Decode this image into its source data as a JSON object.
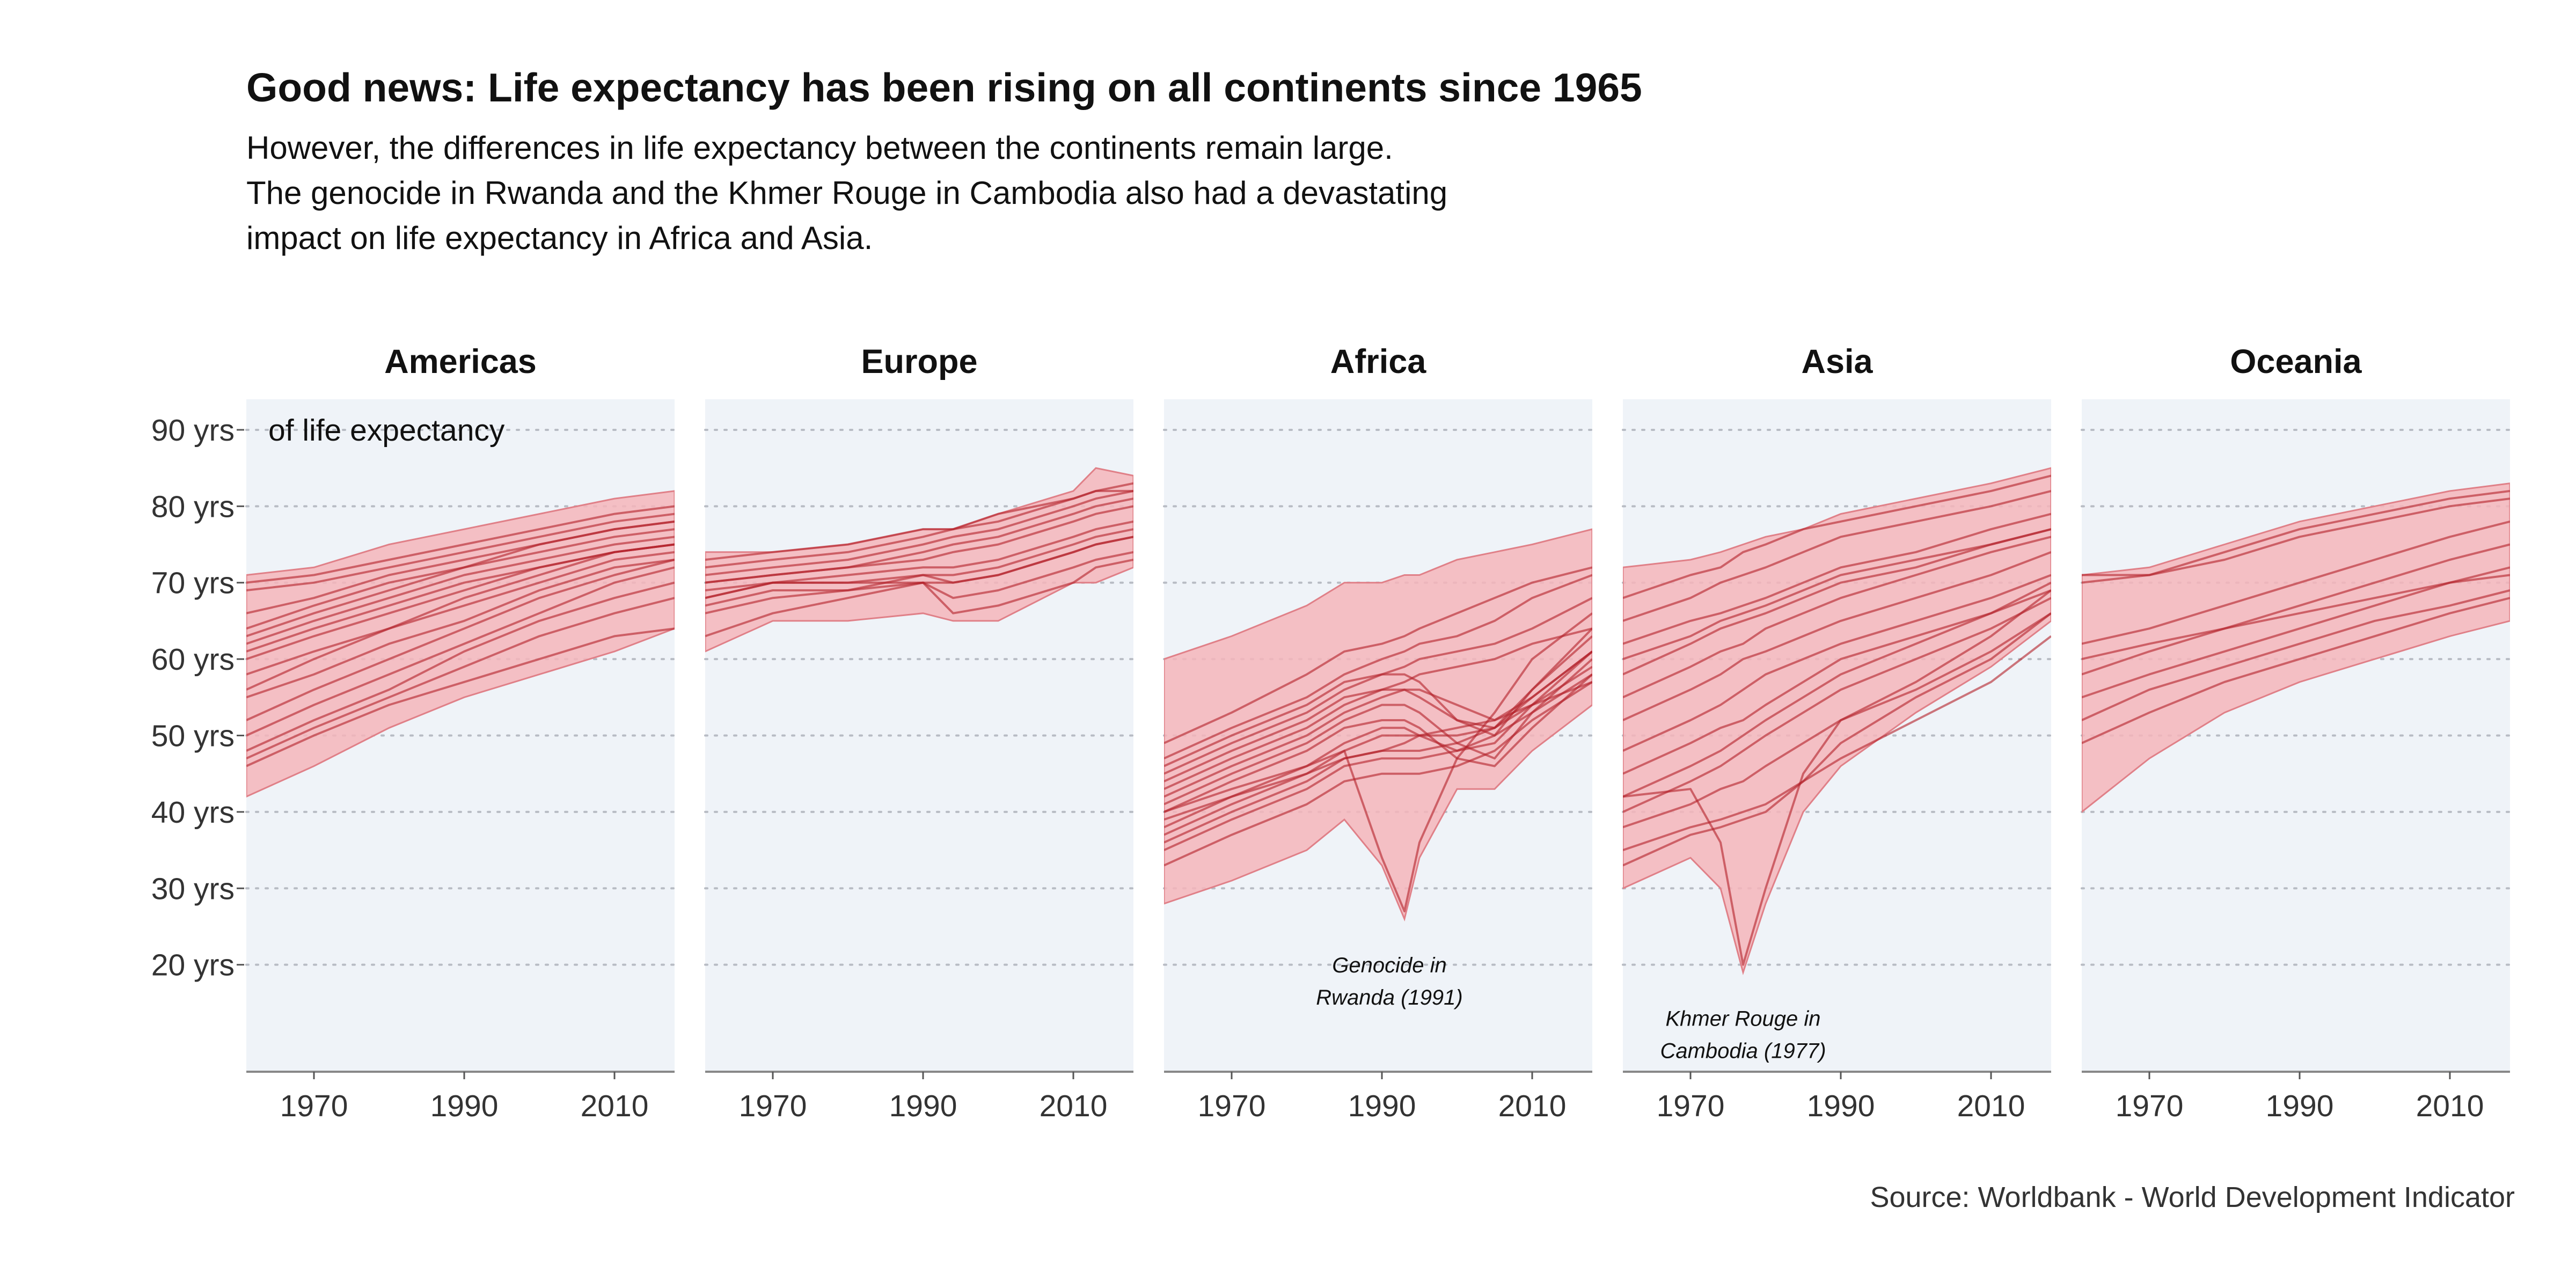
{
  "title": "Good news: Life expectancy has been rising on all continents since 1965",
  "subtitle_lines": [
    "However, the differences in life expectancy between the continents remain large.",
    "The genocide in Rwanda and the Khmer Rouge in Cambodia also had a devastating",
    "impact on life expectancy in Africa and Asia."
  ],
  "caption": "Source: Worldbank - World Development Indicator",
  "colors": {
    "panel_bg": "#eff3f8",
    "ribbon_fill": "#f5b5bb",
    "ribbon_edge": "#e08088",
    "line": "#b22028",
    "grid": "#b8bcc4"
  },
  "chart_data": {
    "type": "line",
    "facets": [
      "Americas",
      "Europe",
      "Africa",
      "Asia",
      "Oceania"
    ],
    "x_range": [
      1961,
      2018
    ],
    "x_ticks": [
      1970,
      1990,
      2010
    ],
    "x_tick_labels": [
      "1970",
      "1990",
      "2010"
    ],
    "ylim": [
      6,
      94
    ],
    "y_ticks": [
      20,
      30,
      40,
      50,
      60,
      70,
      80,
      90
    ],
    "y_tick_labels": [
      "20 yrs",
      "30 yrs",
      "40 yrs",
      "50 yrs",
      "60 yrs",
      "70 yrs",
      "80 yrs",
      "90 yrs"
    ],
    "y_unit_label": "of life expectancy",
    "grid": "horizontal dotted",
    "panels": [
      {
        "name": "Americas",
        "band_x": [
          1961,
          1970,
          1980,
          1990,
          2000,
          2010,
          2018
        ],
        "band_min": [
          42,
          46,
          51,
          55,
          58,
          61,
          64
        ],
        "band_max": [
          71,
          72,
          75,
          77,
          79,
          81,
          82
        ],
        "series": [
          {
            "y": [
              70,
              71,
              73,
              75,
              77,
              79,
              80
            ]
          },
          {
            "y": [
              69,
              70,
              72,
              74,
              76,
              78,
              79
            ]
          },
          {
            "y": [
              66,
              68,
              71,
              73,
              75,
              77,
              78
            ]
          },
          {
            "y": [
              64,
              67,
              70,
              72,
              74,
              76,
              77
            ]
          },
          {
            "y": [
              62,
              65,
              68,
              71,
              73,
              75,
              76
            ]
          },
          {
            "y": [
              60,
              63,
              66,
              69,
              72,
              74,
              75
            ]
          },
          {
            "y": [
              58,
              61,
              64,
              67,
              70,
              73,
              74
            ]
          },
          {
            "y": [
              56,
              60,
              64,
              68,
              71,
              74,
              75
            ]
          },
          {
            "y": [
              55,
              58,
              62,
              65,
              69,
              72,
              73
            ]
          },
          {
            "y": [
              52,
              56,
              60,
              64,
              68,
              71,
              73
            ]
          },
          {
            "y": [
              50,
              54,
              58,
              62,
              66,
              70,
              72
            ]
          },
          {
            "y": [
              48,
              52,
              56,
              61,
              65,
              68,
              70
            ]
          },
          {
            "y": [
              47,
              51,
              55,
              59,
              63,
              66,
              68
            ]
          },
          {
            "y": [
              46,
              50,
              54,
              57,
              60,
              63,
              64
            ]
          },
          {
            "y": [
              63,
              66,
              69,
              72,
              75,
              77,
              78
            ]
          },
          {
            "y": [
              61,
              64,
              67,
              70,
              72,
              74,
              75
            ]
          }
        ]
      },
      {
        "name": "Europe",
        "band_x": [
          1961,
          1970,
          1980,
          1990,
          1994,
          2000,
          2010,
          2013,
          2018
        ],
        "band_min": [
          61,
          65,
          65,
          66,
          65,
          65,
          70,
          70,
          72
        ],
        "band_max": [
          74,
          74,
          75,
          77,
          77,
          79,
          82,
          85,
          84
        ],
        "series": [
          {
            "y": [
              73,
              74,
              75,
              77,
              77,
              79,
              81,
              82,
              83
            ]
          },
          {
            "y": [
              72,
              73,
              74,
              76,
              77,
              78,
              81,
              82,
              82
            ]
          },
          {
            "y": [
              71,
              72,
              73,
              75,
              76,
              77,
              80,
              81,
              82
            ]
          },
          {
            "y": [
              70,
              71,
              72,
              74,
              75,
              76,
              79,
              80,
              81
            ]
          },
          {
            "y": [
              70,
              71,
              72,
              73,
              74,
              75,
              78,
              79,
              80
            ]
          },
          {
            "y": [
              69,
              70,
              71,
              72,
              72,
              73,
              76,
              77,
              78
            ]
          },
          {
            "y": [
              68,
              70,
              70,
              71,
              70,
              71,
              74,
              75,
              76
            ]
          },
          {
            "y": [
              68,
              70,
              70,
              70,
              66,
              67,
              70,
              72,
              73
            ]
          },
          {
            "y": [
              67,
              69,
              69,
              70,
              68,
              69,
              72,
              73,
              74
            ]
          },
          {
            "y": [
              66,
              68,
              69,
              71,
              71,
              72,
              75,
              76,
              77
            ]
          },
          {
            "y": [
              63,
              66,
              68,
              70,
              70,
              71,
              74,
              75,
              76
            ]
          }
        ]
      },
      {
        "name": "Africa",
        "band_x": [
          1961,
          1970,
          1980,
          1985,
          1990,
          1993,
          1995,
          2000,
          2005,
          2010,
          2018
        ],
        "band_min": [
          28,
          31,
          35,
          39,
          33,
          26,
          34,
          43,
          43,
          48,
          54
        ],
        "band_max": [
          60,
          63,
          67,
          70,
          70,
          71,
          71,
          73,
          74,
          75,
          77
        ],
        "series": [
          {
            "y": [
              49,
              53,
              58,
              61,
              62,
              63,
              64,
              66,
              68,
              70,
              72
            ]
          },
          {
            "y": [
              47,
              51,
              55,
              58,
              60,
              61,
              62,
              63,
              65,
              68,
              71
            ]
          },
          {
            "y": [
              45,
              49,
              53,
              56,
              58,
              59,
              60,
              61,
              62,
              64,
              68
            ]
          },
          {
            "y": [
              44,
              48,
              52,
              55,
              56,
              56,
              55,
              52,
              51,
              56,
              63
            ]
          },
          {
            "y": [
              42,
              46,
              50,
              53,
              55,
              56,
              56,
              54,
              52,
              55,
              61
            ]
          },
          {
            "y": [
              41,
              45,
              49,
              52,
              54,
              54,
              53,
              49,
              47,
              53,
              60
            ]
          },
          {
            "y": [
              40,
              44,
              48,
              51,
              52,
              52,
              51,
              47,
              46,
              51,
              58
            ]
          },
          {
            "y": [
              38,
              42,
              46,
              49,
              51,
              51,
              50,
              48,
              49,
              54,
              61
            ]
          },
          {
            "y": [
              37,
              41,
              45,
              48,
              50,
              50,
              50,
              50,
              51,
              55,
              61
            ]
          },
          {
            "y": [
              36,
              40,
              44,
              47,
              48,
              48,
              48,
              49,
              51,
              54,
              59
            ]
          },
          {
            "y": [
              35,
              39,
              43,
              46,
              47,
              47,
              47,
              48,
              50,
              53,
              58
            ]
          },
          {
            "y": [
              33,
              37,
              41,
              44,
              45,
              45,
              45,
              46,
              48,
              52,
              57
            ]
          },
          {
            "y": [
              40,
              43,
              46,
              48,
              34,
              27,
              36,
              47,
              53,
              60,
              66
            ]
          },
          {
            "y": [
              46,
              50,
              54,
              57,
              58,
              58,
              57,
              52,
              50,
              56,
              64
            ]
          },
          {
            "y": [
              39,
              42,
              45,
              47,
              48,
              49,
              50,
              51,
              52,
              54,
              57
            ]
          },
          {
            "y": [
              43,
              47,
              51,
              54,
              56,
              57,
              58,
              59,
              60,
              62,
              64
            ]
          }
        ]
      },
      {
        "name": "Asia",
        "band_x": [
          1961,
          1970,
          1974,
          1977,
          1980,
          1985,
          1990,
          2000,
          2010,
          2018
        ],
        "band_min": [
          30,
          34,
          30,
          19,
          28,
          40,
          46,
          53,
          59,
          65
        ],
        "band_max": [
          72,
          73,
          74,
          75,
          76,
          77,
          79,
          81,
          83,
          85
        ],
        "series": [
          {
            "y": [
              68,
              71,
              72,
              74,
              75,
              77,
              78,
              80,
              82,
              84
            ]
          },
          {
            "y": [
              65,
              68,
              70,
              71,
              72,
              74,
              76,
              78,
              80,
              82
            ]
          },
          {
            "y": [
              62,
              65,
              66,
              67,
              68,
              70,
              72,
              74,
              77,
              79
            ]
          },
          {
            "y": [
              58,
              62,
              64,
              65,
              66,
              68,
              70,
              72,
              75,
              77
            ]
          },
          {
            "y": [
              55,
              59,
              61,
              62,
              64,
              66,
              68,
              71,
              74,
              76
            ]
          },
          {
            "y": [
              52,
              56,
              58,
              60,
              61,
              63,
              65,
              68,
              71,
              74
            ]
          },
          {
            "y": [
              48,
              52,
              54,
              56,
              58,
              60,
              62,
              65,
              68,
              71
            ]
          },
          {
            "y": [
              45,
              49,
              51,
              52,
              54,
              57,
              60,
              63,
              66,
              69
            ]
          },
          {
            "y": [
              42,
              46,
              48,
              50,
              52,
              55,
              58,
              62,
              66,
              70
            ]
          },
          {
            "y": [
              40,
              44,
              46,
              48,
              50,
              53,
              56,
              60,
              64,
              68
            ]
          },
          {
            "y": [
              38,
              41,
              43,
              44,
              46,
              49,
              52,
              56,
              61,
              66
            ]
          },
          {
            "y": [
              35,
              38,
              39,
              40,
              41,
              44,
              47,
              52,
              57,
              63
            ]
          },
          {
            "y": [
              42,
              43,
              36,
              20,
              30,
              45,
              52,
              57,
              63,
              69
            ]
          },
          {
            "y": [
              33,
              37,
              38,
              39,
              40,
              44,
              49,
              55,
              60,
              66
            ]
          },
          {
            "y": [
              60,
              63,
              65,
              66,
              67,
              69,
              71,
              73,
              75,
              77
            ]
          }
        ]
      },
      {
        "name": "Oceania",
        "band_x": [
          1961,
          1970,
          1980,
          1990,
          2000,
          2010,
          2018
        ],
        "band_min": [
          40,
          47,
          53,
          57,
          60,
          63,
          65
        ],
        "band_max": [
          71,
          72,
          75,
          78,
          80,
          82,
          83
        ],
        "series": [
          {
            "y": [
              71,
              71,
              74,
              77,
              79,
              81,
              82
            ]
          },
          {
            "y": [
              70,
              71,
              73,
              76,
              78,
              80,
              81
            ]
          },
          {
            "y": [
              62,
              64,
              67,
              70,
              73,
              76,
              78
            ]
          },
          {
            "y": [
              58,
              61,
              64,
              67,
              70,
              73,
              75
            ]
          },
          {
            "y": [
              55,
              58,
              61,
              64,
              67,
              70,
              72
            ]
          },
          {
            "y": [
              52,
              56,
              59,
              62,
              65,
              67,
              69
            ]
          },
          {
            "y": [
              49,
              53,
              57,
              60,
              63,
              66,
              68
            ]
          },
          {
            "y": [
              60,
              62,
              64,
              66,
              68,
              70,
              71
            ]
          }
        ]
      }
    ],
    "annotations": [
      {
        "panel": "Africa",
        "lines": [
          "Genocide in",
          "Rwanda (1991)"
        ],
        "x": 1991,
        "y": 19
      },
      {
        "panel": "Asia",
        "lines": [
          "Khmer Rouge in",
          "Cambodia (1977)"
        ],
        "x": 1977,
        "y": 12
      }
    ]
  }
}
